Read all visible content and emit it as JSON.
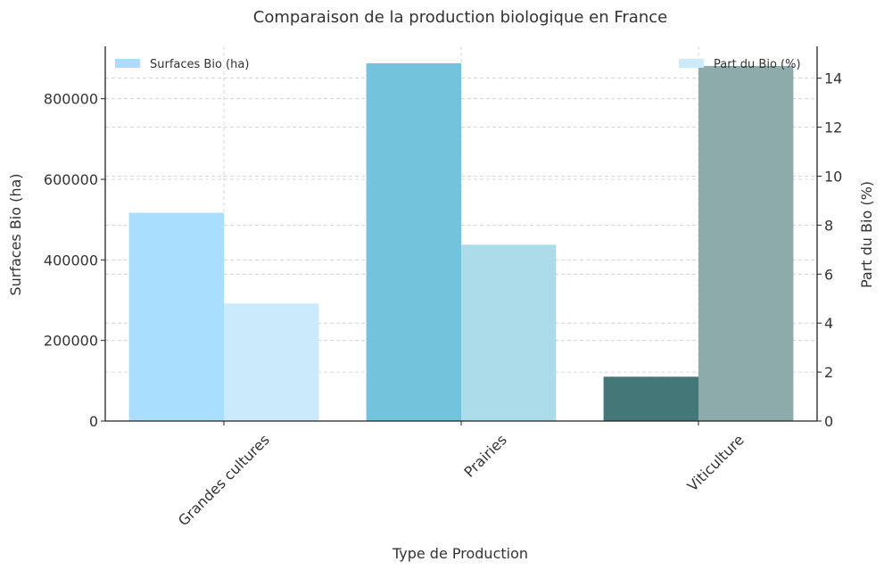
{
  "chart_data": {
    "type": "bar",
    "title": "Comparaison de la production biologique en France",
    "xlabel": "Type de Production",
    "ylabel": "Surfaces Bio (ha)",
    "y2label": "Part du Bio (%)",
    "categories": [
      "Grandes cultures",
      "Prairies",
      "Viticulture"
    ],
    "ylim": [
      0,
      930000
    ],
    "y2lim": [
      0,
      15.3
    ],
    "yticks": [
      0,
      200000,
      400000,
      600000,
      800000
    ],
    "y2ticks": [
      0,
      2,
      4,
      6,
      8,
      10,
      12,
      14
    ],
    "grid": true,
    "series": [
      {
        "name": "Surfaces Bio (ha)",
        "axis": "left",
        "values": [
          517000,
          888000,
          110000
        ],
        "colors": [
          "#aadeff",
          "#74c3dd",
          "#447777"
        ],
        "legend_color": "#aadeff"
      },
      {
        "name": "Part du Bio (%)",
        "axis": "right",
        "values": [
          4.8,
          7.2,
          14.5
        ],
        "colors": [
          "#cbeafc",
          "#acdbea",
          "#8eabab"
        ],
        "legend_color": "#cbeafc"
      }
    ],
    "legend": {
      "left_position": "top-left",
      "right_position": "top-right"
    }
  }
}
